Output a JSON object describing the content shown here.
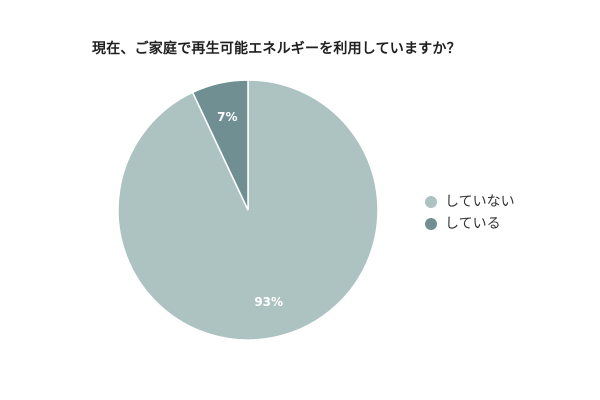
{
  "page": {
    "title": "現在、ご家庭で再生可能エネルギーを利用していますか？"
  },
  "chart_data": {
    "type": "pie",
    "title": "現在、ご家庭で再生可能エネルギーを利用していますか？",
    "categories": [
      "していない",
      "している"
    ],
    "values": [
      93,
      7
    ],
    "labels": [
      "93%",
      "7%"
    ],
    "colors": [
      "#adc3c2",
      "#708f92"
    ],
    "legend_position": "right",
    "grid": false
  },
  "legend": {
    "items": [
      {
        "label": "していない",
        "color": "#adc3c2"
      },
      {
        "label": "している",
        "color": "#708f92"
      }
    ]
  },
  "colors": {
    "background": "#ffffff",
    "text": "#222222"
  }
}
